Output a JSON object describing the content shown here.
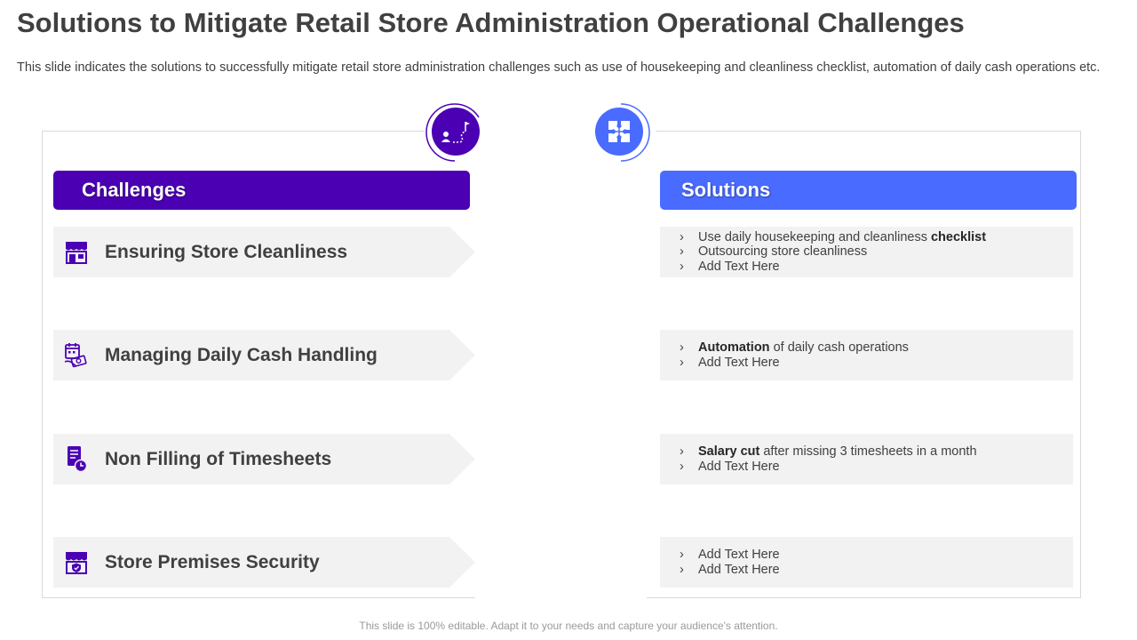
{
  "slide": {
    "title": "Solutions to Mitigate Retail Store Administration Operational Challenges",
    "subtitle": "This slide indicates the solutions to successfully mitigate retail store administration challenges such as use of housekeeping and cleanliness checklist, automation of daily cash operations etc.",
    "footer": "This slide is 100% editable. Adapt it to your needs and capture your audience's attention."
  },
  "colors": {
    "challenges_accent": "#4b00b3",
    "solutions_accent": "#4a6bff",
    "row_background": "#f2f2f2",
    "text": "#404040"
  },
  "challenges": {
    "header": "Challenges",
    "icon": "strategy-path-icon",
    "items": [
      {
        "label": "Ensuring Store Cleanliness",
        "icon": "storefront-icon"
      },
      {
        "label": "Managing Daily Cash Handling",
        "icon": "calendar-cash-icon"
      },
      {
        "label": "Non Filling  of Timesheets",
        "icon": "timesheet-clock-icon"
      },
      {
        "label": "Store Premises Security",
        "icon": "store-security-icon"
      }
    ]
  },
  "solutions": {
    "header": "Solutions",
    "icon": "puzzle-icon",
    "groups": [
      {
        "items": [
          {
            "bold": "",
            "text": "Use daily housekeeping and cleanliness ",
            "bold_after": "checklist"
          },
          {
            "bold": "",
            "text": "Outsourcing store cleanliness",
            "bold_after": ""
          },
          {
            "bold": "",
            "text": "Add Text Here",
            "bold_after": ""
          }
        ]
      },
      {
        "items": [
          {
            "bold": "Automation",
            "text": " of daily cash operations",
            "bold_after": ""
          },
          {
            "bold": "",
            "text": "Add Text Here",
            "bold_after": ""
          }
        ]
      },
      {
        "items": [
          {
            "bold": "Salary cut",
            "text": " after missing 3 timesheets in a month",
            "bold_after": ""
          },
          {
            "bold": "",
            "text": "Add Text Here",
            "bold_after": ""
          }
        ]
      },
      {
        "items": [
          {
            "bold": "",
            "text": "Add Text Here",
            "bold_after": ""
          },
          {
            "bold": "",
            "text": "Add Text Here",
            "bold_after": ""
          }
        ]
      }
    ]
  }
}
